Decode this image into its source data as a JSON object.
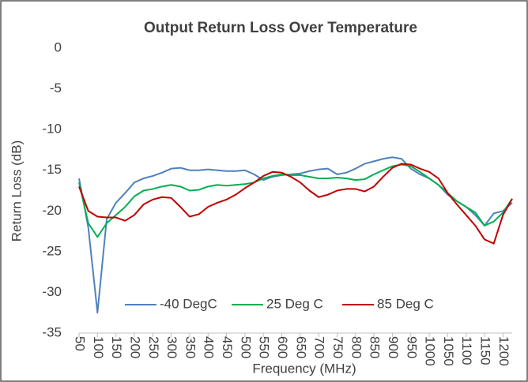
{
  "chart_data": {
    "type": "line",
    "title": "Output Return Loss Over Temperature",
    "x_label": "Frequency (MHz)",
    "y_label": "Return Loss (dB)",
    "x": [
      50,
      75,
      100,
      125,
      150,
      175,
      200,
      225,
      250,
      275,
      300,
      325,
      350,
      375,
      400,
      425,
      450,
      475,
      500,
      525,
      550,
      575,
      600,
      625,
      650,
      675,
      700,
      725,
      750,
      775,
      800,
      825,
      850,
      875,
      900,
      925,
      950,
      975,
      1000,
      1025,
      1050,
      1075,
      1100,
      1125,
      1150,
      1175,
      1200,
      1225
    ],
    "series": [
      {
        "name": "-40 DegC",
        "color": "#4f81bd",
        "values": [
          -16,
          -22,
          -32.5,
          -21,
          -19,
          -17.8,
          -16.5,
          -16,
          -15.7,
          -15.3,
          -14.8,
          -14.7,
          -15,
          -15,
          -14.9,
          -15,
          -15.1,
          -15.1,
          -15,
          -15.5,
          -16.2,
          -15.8,
          -15.6,
          -15.5,
          -15.4,
          -15.1,
          -14.9,
          -14.8,
          -15.5,
          -15.3,
          -14.8,
          -14.2,
          -13.9,
          -13.6,
          -13.4,
          -13.6,
          -14.8,
          -15.5,
          -16,
          -16.8,
          -18,
          -18.8,
          -19.5,
          -20.5,
          -21.8,
          -20.3,
          -20,
          -19
        ]
      },
      {
        "name": "25 Deg C",
        "color": "#00b050",
        "values": [
          -16.5,
          -21.5,
          -23.2,
          -21.5,
          -20.5,
          -19.5,
          -18.2,
          -17.5,
          -17.3,
          -17,
          -16.8,
          -17,
          -17.5,
          -17.4,
          -17,
          -16.8,
          -16.9,
          -16.8,
          -16.7,
          -16.5,
          -16,
          -15.7,
          -15.5,
          -15.6,
          -15.6,
          -15.8,
          -16,
          -16,
          -15.9,
          -16,
          -16.2,
          -16.1,
          -15.5,
          -15,
          -14.5,
          -14.3,
          -14.5,
          -15.2,
          -16,
          -16.8,
          -17.8,
          -18.8,
          -19.5,
          -20.2,
          -21.8,
          -21.3,
          -20.2,
          -18.5
        ]
      },
      {
        "name": "85 Deg C",
        "color": "#c00000",
        "values": [
          -17,
          -20,
          -20.7,
          -20.8,
          -20.8,
          -21.2,
          -20.5,
          -19.2,
          -18.6,
          -18.3,
          -18.4,
          -19.5,
          -20.7,
          -20.4,
          -19.5,
          -19,
          -18.6,
          -18,
          -17.2,
          -16.5,
          -15.7,
          -15.2,
          -15.3,
          -15.8,
          -16.5,
          -17.5,
          -18.3,
          -18,
          -17.5,
          -17.3,
          -17.3,
          -17.6,
          -17,
          -15.8,
          -14.7,
          -14.2,
          -14.3,
          -14.8,
          -15.2,
          -16,
          -17.8,
          -19.2,
          -20.5,
          -21.8,
          -23.5,
          -24,
          -20.5,
          -18.5
        ]
      }
    ],
    "xlim": [
      50,
      1225
    ],
    "xticks": [
      50,
      100,
      150,
      200,
      250,
      300,
      350,
      400,
      450,
      500,
      550,
      600,
      650,
      700,
      750,
      800,
      850,
      900,
      950,
      1000,
      1050,
      1100,
      1150,
      1200
    ],
    "ylim": [
      -35,
      0
    ],
    "yticks": [
      0,
      -5,
      -10,
      -15,
      -20,
      -25,
      -30,
      -35
    ],
    "grid": false,
    "legend": "bottom"
  }
}
